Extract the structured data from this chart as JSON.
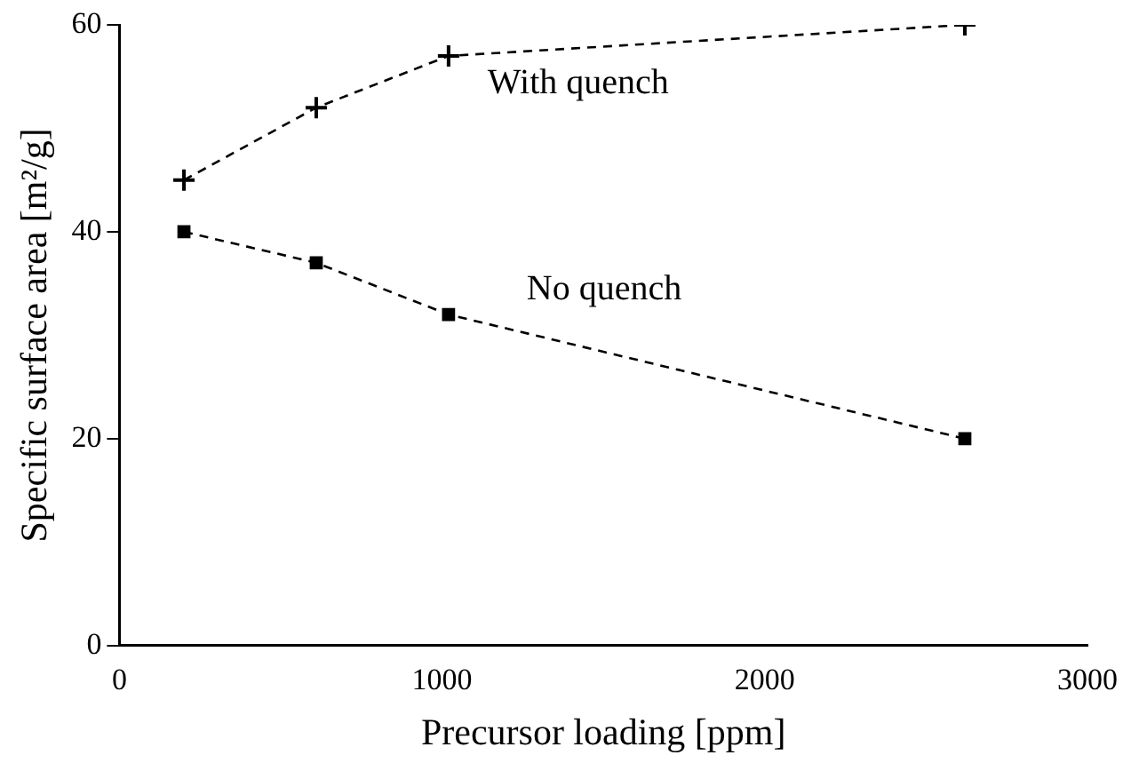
{
  "chart_data": {
    "type": "line",
    "xlabel": "Precursor loading [ppm]",
    "ylabel": "Specific surface area [m²/g]",
    "xlim": [
      0,
      3000
    ],
    "xticks": [
      0,
      1000,
      2000,
      3000
    ],
    "ylim": [
      0,
      60
    ],
    "yticks": [
      0,
      20,
      40,
      60
    ],
    "grid": false,
    "legend": false,
    "line_style": "dashed",
    "series": [
      {
        "name": "With quench",
        "color": "#000000",
        "marker": "cross",
        "x": [
          200,
          610,
          1020,
          2620
        ],
        "values": [
          45,
          52,
          57,
          60
        ]
      },
      {
        "name": "No quench",
        "color": "#000000",
        "marker": "square",
        "x": [
          200,
          610,
          1020,
          2620
        ],
        "values": [
          40,
          37,
          32,
          20
        ]
      }
    ]
  }
}
